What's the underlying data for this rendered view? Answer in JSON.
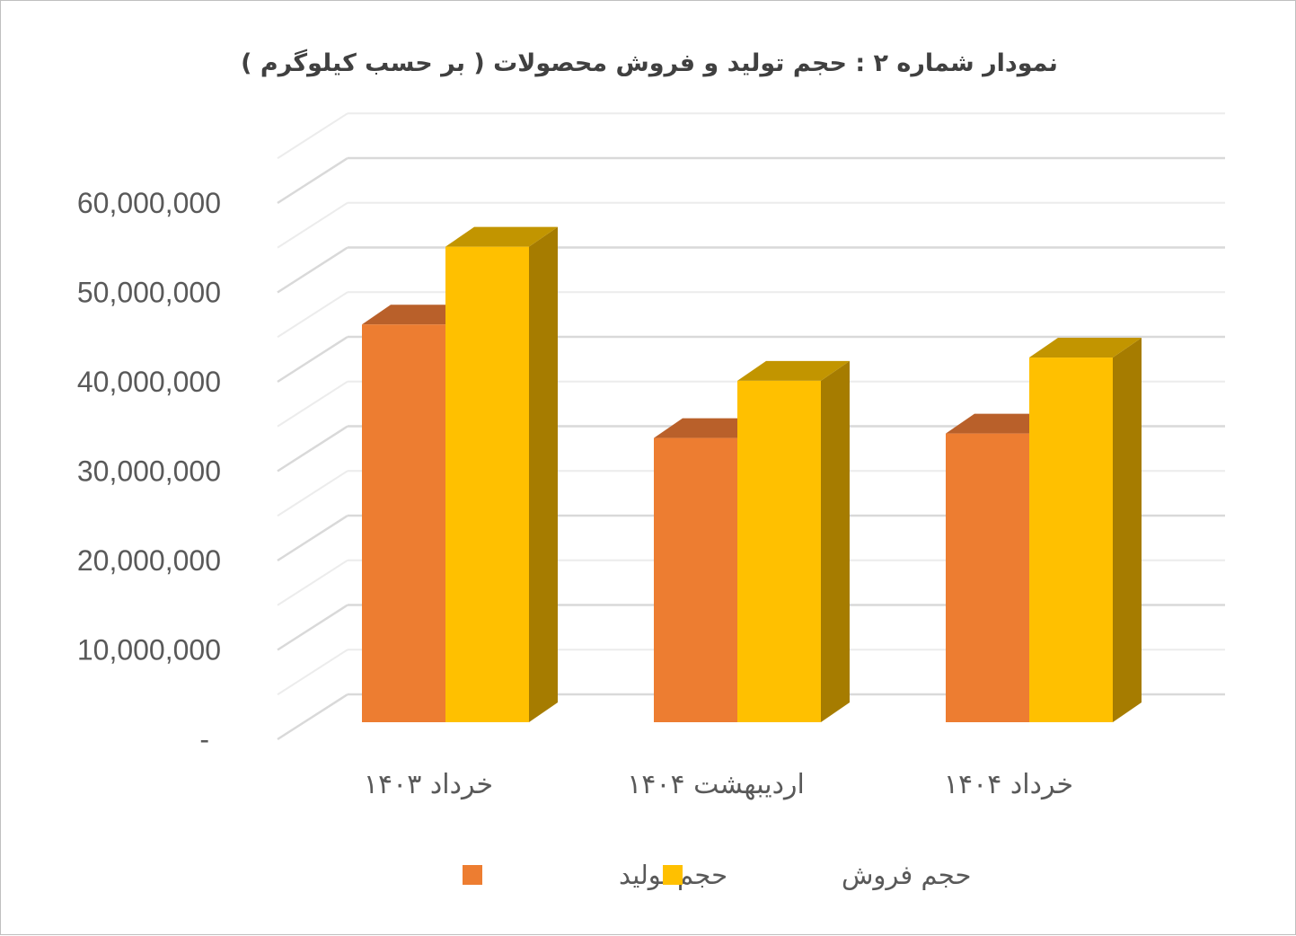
{
  "chart_data": {
    "type": "bar",
    "title": "نمودار شماره ۲ : حجم  تولید و فروش محصولات ( بر حسب کیلوگرم )",
    "categories": [
      "خرداد ۱۴۰۳",
      "اردیبهشت ۱۴۰۴",
      "خرداد ۱۴۰۴"
    ],
    "series": [
      {
        "name": "حجم تولید",
        "values": [
          44500000,
          31800000,
          32300000
        ],
        "color": "#ED7D31",
        "top_color": "#B9602A"
      },
      {
        "name": "حجم فروش",
        "values": [
          53200000,
          38200000,
          40800000
        ],
        "color": "#FFC000",
        "top_color": "#C29500",
        "side_color": "#A67C00"
      }
    ],
    "y_ticks": [
      "-",
      "10,000,000",
      "20,000,000",
      "30,000,000",
      "40,000,000",
      "50,000,000",
      "60,000,000"
    ],
    "ylim": [
      0,
      60000000
    ],
    "grid": true,
    "legend_position": "bottom",
    "style": "3d-clustered-column"
  }
}
